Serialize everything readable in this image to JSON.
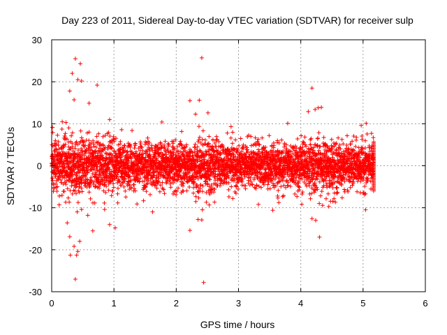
{
  "chart_data": {
    "type": "scatter",
    "title": "Day 223 of 2011, Sidereal Day-to-day VTEC variation (SDTVAR) for receiver sulp",
    "xlabel": "GPS time / hours",
    "ylabel": "SDTVAR / TECUs",
    "xlim": [
      0,
      6
    ],
    "ylim": [
      -30,
      30
    ],
    "xticks": [
      0,
      1,
      2,
      3,
      4,
      5,
      6
    ],
    "yticks": [
      -30,
      -20,
      -10,
      0,
      10,
      20,
      30
    ],
    "grid": true,
    "marker": "plus",
    "series": [
      {
        "name": "SDTVAR",
        "color": "#ff0000",
        "core_band": {
          "x_range": [
            0,
            5.17
          ],
          "approx_half_width": [
            3.5,
            4.5
          ]
        },
        "outliers": [
          {
            "x": 0.33,
            "y": 22.0
          },
          {
            "x": 0.38,
            "y": 25.5
          },
          {
            "x": 0.42,
            "y": 20.5
          },
          {
            "x": 0.46,
            "y": 24.3
          },
          {
            "x": 0.29,
            "y": 17.8
          },
          {
            "x": 0.36,
            "y": 15.7
          },
          {
            "x": 0.6,
            "y": 14.9
          },
          {
            "x": 0.73,
            "y": 19.2
          },
          {
            "x": 0.48,
            "y": 20.2
          },
          {
            "x": 0.93,
            "y": 11.0
          },
          {
            "x": 0.17,
            "y": 10.5
          },
          {
            "x": 0.23,
            "y": 10.3
          },
          {
            "x": 2.41,
            "y": 25.7
          },
          {
            "x": 2.22,
            "y": 15.5
          },
          {
            "x": 2.37,
            "y": 15.6
          },
          {
            "x": 2.51,
            "y": 12.6
          },
          {
            "x": 2.31,
            "y": 12.3
          },
          {
            "x": 1.77,
            "y": 10.4
          },
          {
            "x": 4.18,
            "y": 18.5
          },
          {
            "x": 4.28,
            "y": 13.8
          },
          {
            "x": 4.23,
            "y": 13.4
          },
          {
            "x": 4.33,
            "y": 13.9
          },
          {
            "x": 4.12,
            "y": 12.9
          },
          {
            "x": 3.79,
            "y": 10.1
          },
          {
            "x": 5.05,
            "y": 10.1
          },
          {
            "x": 4.97,
            "y": 9.6
          },
          {
            "x": 2.88,
            "y": 9.3
          },
          {
            "x": 0.38,
            "y": -27.0
          },
          {
            "x": 0.3,
            "y": -21.3
          },
          {
            "x": 0.4,
            "y": -21.3
          },
          {
            "x": 0.36,
            "y": -19.2
          },
          {
            "x": 0.42,
            "y": -20.4
          },
          {
            "x": 0.45,
            "y": -18.0
          },
          {
            "x": 0.29,
            "y": -16.9
          },
          {
            "x": 0.25,
            "y": -13.6
          },
          {
            "x": 0.41,
            "y": -11.0
          },
          {
            "x": 0.66,
            "y": -15.5
          },
          {
            "x": 0.93,
            "y": -14.0
          },
          {
            "x": 1.02,
            "y": -14.8
          },
          {
            "x": 0.48,
            "y": -10.4
          },
          {
            "x": 0.58,
            "y": -11.8
          },
          {
            "x": 0.85,
            "y": -10.4
          },
          {
            "x": 2.44,
            "y": -27.8
          },
          {
            "x": 2.22,
            "y": -15.4
          },
          {
            "x": 2.35,
            "y": -12.8
          },
          {
            "x": 2.41,
            "y": -12.9
          },
          {
            "x": 2.42,
            "y": -10.5
          },
          {
            "x": 1.62,
            "y": -11.0
          },
          {
            "x": 4.3,
            "y": -17.0
          },
          {
            "x": 4.24,
            "y": -13.0
          },
          {
            "x": 4.18,
            "y": -12.6
          },
          {
            "x": 4.45,
            "y": -9.7
          },
          {
            "x": 5.04,
            "y": -10.5
          },
          {
            "x": 3.55,
            "y": -10.6
          },
          {
            "x": 3.32,
            "y": -9.2
          },
          {
            "x": 0.12,
            "y": -9.3
          },
          {
            "x": 1.37,
            "y": -9.1
          }
        ]
      }
    ]
  }
}
